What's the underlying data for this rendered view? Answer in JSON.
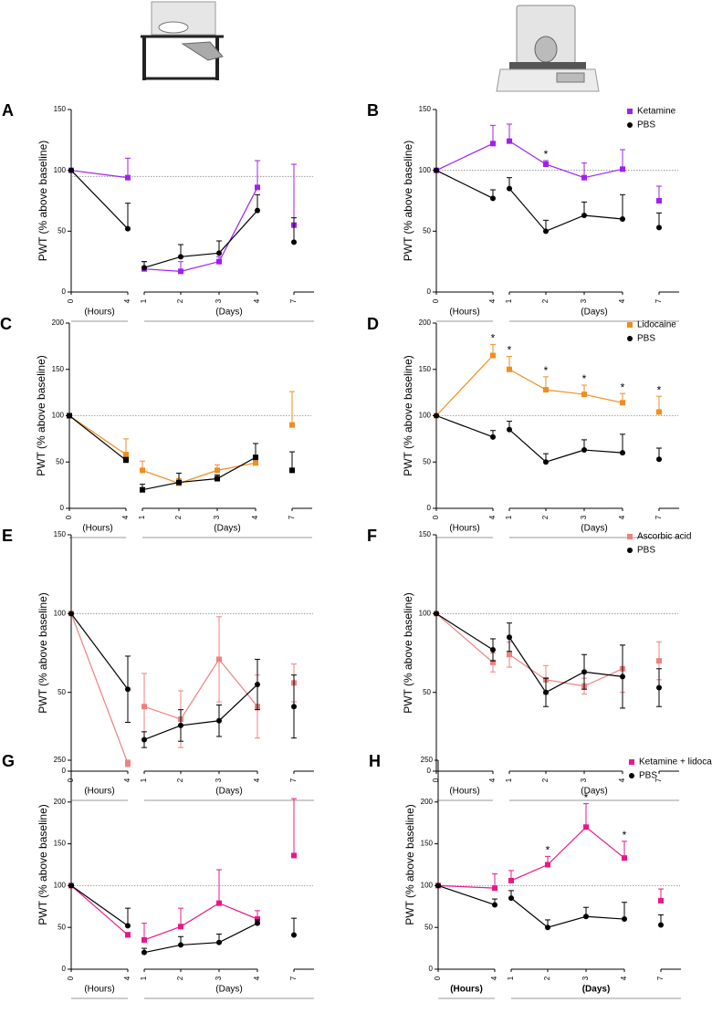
{
  "chart_data": [
    {
      "type": "line",
      "panel": "A",
      "y_label": "PWT (% above baseline)",
      "categories": [
        "0",
        "4",
        "1",
        "2",
        "3",
        "4",
        "7"
      ],
      "x_group_labels": [
        "(Hours)",
        "(Days)"
      ],
      "ylim": [
        0,
        150
      ],
      "yticks": [
        0,
        50,
        100,
        150
      ],
      "reference_line": 95,
      "error_bars": "upper",
      "series": [
        {
          "color": "#a020f0",
          "marker": "square",
          "values": [
            100,
            94,
            19,
            17,
            25,
            86,
            55
          ],
          "errors": [
            0,
            16,
            6,
            8,
            4,
            22,
            50
          ]
        },
        {
          "color": "#000000",
          "marker": "circle",
          "values": [
            100,
            52,
            20,
            29,
            32,
            67,
            41
          ],
          "errors": [
            0,
            21,
            5,
            10,
            10,
            13,
            20
          ]
        }
      ]
    },
    {
      "type": "line",
      "panel": "B",
      "y_label": "PWT (% above baseline)",
      "categories": [
        "0",
        "4",
        "1",
        "2",
        "3",
        "4",
        "7"
      ],
      "x_group_labels": [
        "(Hours)",
        "(Days)"
      ],
      "ylim": [
        0,
        150
      ],
      "yticks": [
        0,
        50,
        100,
        150
      ],
      "reference_line": 100,
      "error_bars": "upper",
      "series": [
        {
          "name": "Ketamine",
          "color": "#a020f0",
          "marker": "square",
          "values": [
            100,
            122,
            124,
            105,
            94,
            101,
            75
          ],
          "errors": [
            0,
            15,
            14,
            3,
            12,
            16,
            12
          ],
          "significance": [
            null,
            null,
            null,
            "*",
            null,
            null,
            null
          ]
        },
        {
          "name": "PBS",
          "color": "#000000",
          "marker": "circle",
          "values": [
            100,
            77,
            85,
            50,
            63,
            60,
            53
          ],
          "errors": [
            0,
            7,
            9,
            9,
            11,
            20,
            12
          ]
        }
      ]
    },
    {
      "type": "line",
      "panel": "C",
      "y_label": "PWT (% above baseline)",
      "categories": [
        "0",
        "4",
        "1",
        "2",
        "3",
        "4",
        "7"
      ],
      "x_group_labels": [
        "(Hours)",
        "(Days)"
      ],
      "ylim": [
        0,
        200
      ],
      "yticks": [
        0,
        50,
        100,
        150,
        200
      ],
      "reference_line": 100,
      "error_bars": "upper",
      "series": [
        {
          "color": "#f28c1e",
          "marker": "square",
          "values": [
            100,
            58,
            41,
            27,
            41,
            49,
            90
          ],
          "errors": [
            0,
            17,
            10,
            5,
            6,
            4,
            36
          ]
        },
        {
          "color": "#000000",
          "marker": "square",
          "values": [
            100,
            52,
            20,
            28,
            32,
            55,
            41
          ],
          "errors": [
            0,
            3,
            6,
            10,
            4,
            15,
            20
          ]
        }
      ]
    },
    {
      "type": "line",
      "panel": "D",
      "y_label": "PWT (% above baseline)",
      "categories": [
        "0",
        "4",
        "1",
        "2",
        "3",
        "4",
        "7"
      ],
      "x_group_labels": [
        "(Hours)",
        "(Days)"
      ],
      "ylim": [
        0,
        200
      ],
      "yticks": [
        0,
        50,
        100,
        150,
        200
      ],
      "reference_line": 100,
      "error_bars": "upper",
      "series": [
        {
          "name": "Lidocaine",
          "color": "#f28c1e",
          "marker": "square",
          "values": [
            100,
            165,
            150,
            128,
            123,
            114,
            104
          ],
          "errors": [
            0,
            12,
            14,
            14,
            10,
            10,
            17
          ],
          "significance": [
            null,
            "*",
            "*",
            "*",
            "*",
            "*",
            "*"
          ]
        },
        {
          "name": "PBS",
          "color": "#000000",
          "marker": "circle",
          "values": [
            100,
            77,
            85,
            50,
            63,
            60,
            53
          ],
          "errors": [
            0,
            7,
            9,
            9,
            11,
            20,
            12
          ]
        }
      ]
    },
    {
      "type": "line",
      "panel": "E",
      "y_label": "PWT (% above baseline)",
      "categories": [
        "0",
        "4",
        "1",
        "2",
        "3",
        "4",
        "7"
      ],
      "x_group_labels": [
        "(Hours)",
        "(Days)"
      ],
      "ylim": [
        0,
        150
      ],
      "yticks": [
        0,
        50,
        100,
        150
      ],
      "reference_line": 100,
      "error_bars": "both",
      "series": [
        {
          "color": "#f08080",
          "marker": "square",
          "values": [
            100,
            5,
            41,
            33,
            71,
            41,
            56
          ],
          "errors": [
            0,
            2,
            21,
            18,
            27,
            20,
            12
          ]
        },
        {
          "color": "#000000",
          "marker": "circle",
          "values": [
            100,
            52,
            20,
            29,
            32,
            55,
            41
          ],
          "errors": [
            0,
            21,
            5,
            10,
            10,
            16,
            20
          ]
        }
      ]
    },
    {
      "type": "line",
      "panel": "F",
      "y_label": "PWT (% above baseline)",
      "categories": [
        "0",
        "4",
        "1",
        "2",
        "3",
        "4",
        "7"
      ],
      "x_group_labels": [
        "(Hours)",
        "(Days)"
      ],
      "ylim": [
        0,
        150
      ],
      "yticks": [
        0,
        50,
        100,
        150
      ],
      "reference_line": 100,
      "error_bars": "both",
      "series": [
        {
          "name": "Ascorbic acid",
          "color": "#f08080",
          "marker": "square",
          "values": [
            100,
            69,
            74,
            58,
            54,
            65,
            70
          ],
          "errors": [
            0,
            6,
            8,
            9,
            5,
            15,
            12
          ]
        },
        {
          "name": "PBS",
          "color": "#000000",
          "marker": "circle",
          "values": [
            100,
            77,
            85,
            50,
            63,
            60,
            53
          ],
          "errors": [
            0,
            7,
            9,
            9,
            11,
            20,
            12
          ]
        }
      ]
    },
    {
      "type": "line",
      "panel": "G",
      "y_label": "PWT (% above baseline)",
      "categories": [
        "0",
        "4",
        "1",
        "2",
        "3",
        "4",
        "7"
      ],
      "x_group_labels": [
        "(Hours)",
        "(Days)"
      ],
      "ylim": [
        0,
        250
      ],
      "yticks": [
        0,
        50,
        100,
        150,
        200,
        250
      ],
      "reference_line": 100,
      "error_bars": "upper",
      "series": [
        {
          "color": "#e8188c",
          "marker": "square",
          "values": [
            100,
            41,
            35,
            51,
            79,
            60,
            136
          ],
          "errors": [
            0,
            3,
            20,
            22,
            40,
            10,
            68
          ]
        },
        {
          "color": "#000000",
          "marker": "circle",
          "values": [
            100,
            52,
            20,
            29,
            32,
            55,
            41
          ],
          "errors": [
            0,
            21,
            5,
            10,
            10,
            4,
            20
          ]
        }
      ]
    },
    {
      "type": "line",
      "panel": "H",
      "y_label": "PWT (% above baseline)",
      "categories": [
        "0",
        "4",
        "1",
        "2",
        "3",
        "4",
        "7"
      ],
      "x_group_labels": [
        "(Hours)",
        "(Days)"
      ],
      "ylim": [
        0,
        250
      ],
      "yticks": [
        0,
        50,
        100,
        150,
        200,
        250
      ],
      "reference_line": 100,
      "error_bars": "upper",
      "bold_group_labels": true,
      "series": [
        {
          "name": "Ketamine + lidocaine",
          "color": "#e8188c",
          "marker": "square",
          "values": [
            100,
            97,
            106,
            125,
            170,
            133,
            82
          ],
          "errors": [
            0,
            17,
            12,
            10,
            28,
            20,
            14
          ],
          "significance": [
            null,
            null,
            null,
            "*",
            "*",
            "*",
            null
          ]
        },
        {
          "name": "PBS",
          "color": "#000000",
          "marker": "circle",
          "values": [
            100,
            77,
            85,
            50,
            63,
            60,
            53
          ],
          "errors": [
            0,
            7,
            9,
            9,
            11,
            20,
            12
          ]
        }
      ]
    }
  ]
}
